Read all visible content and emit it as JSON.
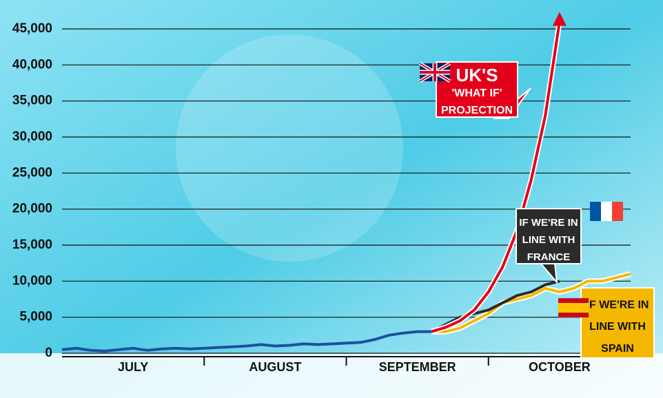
{
  "chart_data": {
    "type": "line",
    "categories": [
      null,
      null,
      null,
      null,
      null,
      "JULY",
      null,
      null,
      null,
      null,
      null,
      null,
      null,
      null,
      null,
      "AUGUST",
      null,
      null,
      null,
      null,
      null,
      null,
      null,
      null,
      null,
      "SEPTEMBER",
      null,
      null,
      null,
      null,
      null,
      null,
      null,
      null,
      null,
      "OCTOBER",
      null,
      null,
      null,
      null,
      null
    ],
    "series": [
      {
        "color": "#1f4f9e",
        "values": [
          500,
          700,
          400,
          300,
          500,
          700,
          400,
          600,
          700,
          600,
          700,
          800,
          900,
          1000,
          1200,
          1000,
          1100,
          1300,
          1200,
          1300,
          1400,
          1500,
          1900,
          2500,
          2800,
          3000,
          3000,
          null,
          null,
          null,
          null,
          null,
          null,
          null,
          null,
          null,
          null,
          null,
          null,
          null,
          null
        ]
      },
      {
        "color": "#e3001b",
        "values": [
          null,
          null,
          null,
          null,
          null,
          null,
          null,
          null,
          null,
          null,
          null,
          null,
          null,
          null,
          null,
          null,
          null,
          null,
          null,
          null,
          null,
          null,
          null,
          null,
          null,
          null,
          3000,
          3600,
          4500,
          6000,
          8500,
          12000,
          17000,
          24000,
          33000,
          46000,
          null,
          null,
          null,
          null,
          null
        ]
      },
      {
        "color": "#2b2b2b",
        "values": [
          null,
          null,
          null,
          null,
          null,
          null,
          null,
          null,
          null,
          null,
          null,
          null,
          null,
          null,
          null,
          null,
          null,
          null,
          null,
          null,
          null,
          null,
          null,
          null,
          null,
          null,
          3000,
          4000,
          5000,
          5500,
          6000,
          7000,
          8000,
          8500,
          9500,
          10000,
          null,
          null,
          null,
          null,
          null
        ]
      },
      {
        "color": "#f5b800",
        "values": [
          null,
          null,
          null,
          null,
          null,
          null,
          null,
          null,
          null,
          null,
          null,
          null,
          null,
          null,
          null,
          null,
          null,
          null,
          null,
          null,
          null,
          null,
          null,
          null,
          null,
          null,
          3000,
          3000,
          3500,
          4500,
          5500,
          7000,
          7500,
          8000,
          9000,
          8500,
          9000,
          10000,
          10000,
          10500,
          11000
        ]
      }
    ],
    "ylim": [
      0,
      45000
    ],
    "yticks": [
      0,
      {
        "value": 5000,
        "label": "5,000"
      },
      {
        "value": 10000,
        "label": "10,000"
      },
      {
        "value": 15000,
        "label": "15,000"
      },
      {
        "value": 20000,
        "label": "20,000"
      },
      {
        "value": 25000,
        "label": "25,000"
      },
      {
        "value": 30000,
        "label": "30,000"
      },
      {
        "value": 35000,
        "label": "35,000"
      },
      {
        "value": 40000,
        "label": "40,000"
      },
      {
        "value": 45000,
        "label": "45,000"
      }
    ],
    "grid": true,
    "annotations": [
      {
        "lines": [
          "UK'S",
          "'WHAT IF'",
          "PROJECTION"
        ],
        "color": "#e3001b"
      },
      {
        "lines": [
          "IF WE'RE IN",
          "LINE WITH",
          "FRANCE"
        ],
        "color": "#2b2b2b"
      },
      {
        "lines": [
          "IF WE'RE IN",
          "LINE WITH",
          "SPAIN"
        ],
        "color": "#f5b800"
      }
    ]
  }
}
